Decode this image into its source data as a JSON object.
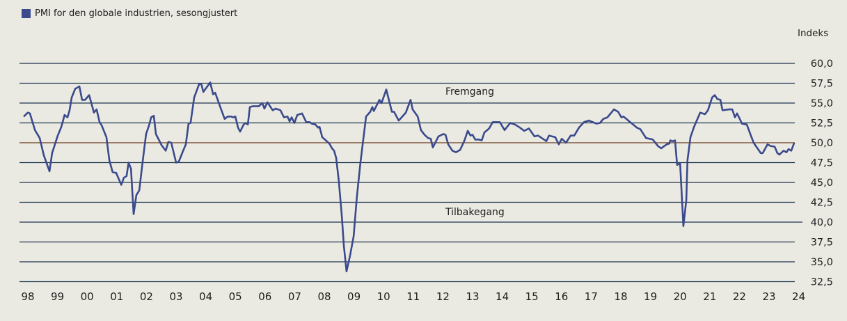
{
  "chart_data": {
    "type": "line",
    "title": "",
    "legend": "top-left",
    "ylabel": "Indeks",
    "xlabel": "",
    "ylim": [
      32.5,
      60
    ],
    "xlim": [
      1998,
      2024
    ],
    "grid": true,
    "reference_line": 50,
    "y_ticks": [
      "60,0",
      "57,5",
      "55,0",
      "52,5",
      "50,0",
      "47,5",
      "45,0",
      "42,5",
      "40,0",
      "37,5",
      "35,0",
      "32,5"
    ],
    "x_ticks": [
      "98",
      "99",
      "00",
      "01",
      "02",
      "03",
      "04",
      "05",
      "06",
      "07",
      "08",
      "09",
      "10",
      "11",
      "12",
      "13",
      "14",
      "15",
      "16",
      "17",
      "18",
      "19",
      "20",
      "21",
      "22",
      "23",
      "24"
    ],
    "annotations": {
      "above": "Fremgang",
      "below": "Tilbakegang"
    },
    "colors": {
      "series": "#3a4a8c",
      "grid": "#1c3550",
      "reference": "#6b3a1f",
      "background": "#ebeae2"
    },
    "series": [
      {
        "name": "PMI for den globale industrien, sesongjustert",
        "x": [
          1998.0,
          1998.14,
          1998.21,
          1998.38,
          1998.54,
          1998.68,
          1998.87,
          1998.96,
          1999.15,
          1999.27,
          1999.38,
          1999.48,
          1999.55,
          1999.62,
          1999.74,
          1999.88,
          1999.97,
          2000.07,
          2000.21,
          2000.37,
          2000.46,
          2000.56,
          2000.63,
          2000.79,
          2000.89,
          2001.0,
          2001.12,
          2001.29,
          2001.38,
          2001.47,
          2001.54,
          2001.62,
          2001.71,
          2001.8,
          2001.9,
          2002.01,
          2002.13,
          2002.23,
          2002.3,
          2002.39,
          2002.46,
          2002.65,
          2002.79,
          2002.88,
          2002.98,
          2003.14,
          2003.23,
          2003.38,
          2003.47,
          2003.56,
          2003.63,
          2003.75,
          2003.92,
          2003.99,
          2004.06,
          2004.29,
          2004.39,
          2004.46,
          2004.64,
          2004.78,
          2004.88,
          2005.0,
          2005.07,
          2005.14,
          2005.23,
          2005.3,
          2005.42,
          2005.49,
          2005.56,
          2005.63,
          2005.72,
          2005.93,
          2006.05,
          2006.12,
          2006.22,
          2006.4,
          2006.5,
          2006.66,
          2006.78,
          2006.9,
          2006.97,
          2007.04,
          2007.13,
          2007.23,
          2007.39,
          2007.53,
          2007.65,
          2007.72,
          2007.84,
          2007.93,
          2007.98,
          2008.07,
          2008.16,
          2008.31,
          2008.4,
          2008.47,
          2008.54,
          2008.63,
          2008.73,
          2008.8,
          2008.89,
          2009.01,
          2009.13,
          2009.24,
          2009.36,
          2009.55,
          2009.69,
          2009.76,
          2009.81,
          2010.0,
          2010.07,
          2010.23,
          2010.42,
          2010.49,
          2010.65,
          2010.89,
          2011.05,
          2011.12,
          2011.29,
          2011.4,
          2011.52,
          2011.64,
          2011.73,
          2011.8,
          2011.99,
          2012.15,
          2012.23,
          2012.32,
          2012.46,
          2012.58,
          2012.72,
          2012.86,
          2012.98,
          2013.07,
          2013.14,
          2013.23,
          2013.35,
          2013.45,
          2013.54,
          2013.7,
          2013.82,
          2014.06,
          2014.22,
          2014.41,
          2014.57,
          2014.74,
          2014.88,
          2015.04,
          2015.23,
          2015.35,
          2015.63,
          2015.72,
          2015.93,
          2016.05,
          2016.15,
          2016.29,
          2016.45,
          2016.57,
          2016.73,
          2016.9,
          2017.06,
          2017.32,
          2017.44,
          2017.55,
          2017.69,
          2017.91,
          2018.05,
          2018.16,
          2018.23,
          2018.49,
          2018.68,
          2018.8,
          2018.99,
          2019.22,
          2019.39,
          2019.5,
          2019.69,
          2019.78,
          2019.81,
          2019.9,
          2019.97,
          2020.04,
          2020.14,
          2020.25,
          2020.35,
          2020.39,
          2020.49,
          2020.61,
          2020.82,
          2020.98,
          2021.08,
          2021.22,
          2021.31,
          2021.4,
          2021.5,
          2021.57,
          2021.8,
          2021.9,
          2021.99,
          2022.06,
          2022.23,
          2022.39,
          2022.51,
          2022.62,
          2022.86,
          2022.93,
          2023.09,
          2023.19,
          2023.33,
          2023.42,
          2023.49,
          2023.63,
          2023.73,
          2023.8,
          2023.89,
          2023.99
        ],
        "y": [
          53.3,
          53.8,
          53.7,
          51.6,
          50.6,
          48.4,
          46.4,
          48.7,
          50.9,
          52.0,
          53.5,
          53.2,
          54.1,
          55.7,
          56.8,
          57.1,
          55.4,
          55.4,
          56.0,
          53.8,
          54.2,
          52.6,
          52.2,
          50.7,
          47.8,
          46.3,
          46.2,
          44.7,
          45.6,
          45.8,
          47.5,
          46.7,
          41.0,
          43.4,
          44.0,
          47.5,
          51.1,
          52.2,
          53.2,
          53.4,
          51.1,
          49.7,
          49.0,
          50.1,
          50.0,
          47.5,
          47.6,
          49.0,
          49.8,
          52.4,
          52.5,
          55.7,
          57.4,
          57.4,
          56.4,
          57.6,
          56.1,
          56.3,
          54.4,
          53.0,
          53.3,
          53.3,
          53.2,
          53.3,
          51.9,
          51.4,
          52.3,
          52.5,
          52.3,
          54.5,
          54.6,
          54.6,
          55.0,
          54.3,
          55.1,
          54.1,
          54.3,
          54.1,
          53.2,
          53.3,
          52.7,
          53.2,
          52.5,
          53.5,
          53.7,
          52.6,
          52.6,
          52.4,
          52.3,
          51.9,
          52.0,
          50.7,
          50.4,
          49.9,
          49.3,
          49.0,
          48.1,
          45.2,
          40.8,
          37.0,
          33.8,
          35.8,
          38.2,
          43.2,
          47.5,
          53.3,
          53.9,
          54.5,
          54.0,
          55.4,
          55.0,
          56.7,
          53.9,
          53.9,
          52.8,
          53.8,
          55.4,
          54.2,
          53.3,
          51.6,
          51.0,
          50.6,
          50.5,
          49.4,
          50.8,
          51.1,
          51.0,
          49.8,
          49.0,
          48.8,
          49.1,
          50.2,
          51.5,
          50.9,
          51.0,
          50.4,
          50.4,
          50.3,
          51.3,
          51.8,
          52.6,
          52.6,
          51.6,
          52.5,
          52.3,
          51.9,
          51.5,
          51.8,
          50.8,
          50.9,
          50.2,
          50.9,
          50.7,
          49.8,
          50.5,
          50.0,
          50.9,
          50.9,
          51.9,
          52.6,
          52.8,
          52.4,
          52.5,
          53.0,
          53.2,
          54.2,
          53.9,
          53.2,
          53.3,
          52.5,
          51.9,
          51.7,
          50.6,
          50.4,
          49.6,
          49.3,
          49.8,
          49.9,
          50.3,
          50.2,
          50.3,
          47.2,
          47.4,
          39.5,
          42.8,
          47.8,
          50.7,
          52.0,
          53.8,
          53.6,
          54.1,
          55.7,
          56.0,
          55.5,
          55.4,
          54.1,
          54.2,
          54.2,
          53.2,
          53.7,
          52.4,
          52.3,
          51.1,
          50.0,
          48.7,
          48.7,
          49.8,
          49.6,
          49.5,
          48.7,
          48.5,
          49.0,
          48.8,
          49.2,
          49.0,
          50.0
        ]
      }
    ]
  }
}
